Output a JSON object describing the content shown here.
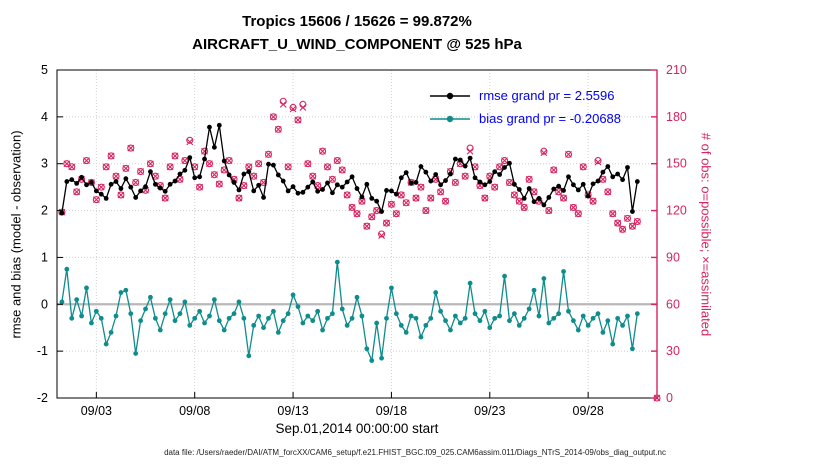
{
  "header": {
    "title_line1": "Tropics 15606 / 15626 = 99.872%",
    "title_line2": "AIRCRAFT_U_WIND_COMPONENT @ 525 hPa"
  },
  "footer": {
    "data_file": "data file: /Users/raeder/DAI/ATM_forcXX/CAM6_setup/f.e21.FHIST_BGC.f09_025.CAM6assim.011/Diags_NTrS_2014-09/obs_diag_output.nc"
  },
  "colors": {
    "obs_pink": "#D6245F",
    "bias_teal": "#0F8C8C",
    "rmse_black": "#000000",
    "legend_blue": "#0000EE",
    "zero_line_gray": "#B8B8B8",
    "grid_gray": "#CFCFCF"
  },
  "chart_data": {
    "type": "line",
    "title": "Tropics 15606 / 15626 = 99.872% — AIRCRAFT_U_WIND_COMPONENT @ 525 hPa",
    "x_axis": {
      "start_label": "Sep.01,2014 00:00:00 start",
      "range_days": [
        0,
        30.5
      ],
      "ticks": [
        {
          "day": 2,
          "label": "09/03"
        },
        {
          "day": 7,
          "label": "09/08"
        },
        {
          "day": 12,
          "label": "09/13"
        },
        {
          "day": 17,
          "label": "09/18"
        },
        {
          "day": 22,
          "label": "09/23"
        },
        {
          "day": 27,
          "label": "09/28"
        }
      ]
    },
    "left_axis": {
      "label": "rmse and bias (model - observation)",
      "range": [
        -2,
        5
      ],
      "ticks": [
        -2,
        -1,
        0,
        1,
        2,
        3,
        4,
        5
      ]
    },
    "right_axis": {
      "label": "# of obs: o=possible; ×=assimilated",
      "range": [
        0,
        210
      ],
      "ticks": [
        0,
        30,
        60,
        90,
        120,
        150,
        180,
        210
      ],
      "color": "#D6245F"
    },
    "grid": true,
    "zero_line": true,
    "legend_position": "top-right-inside",
    "x_start_day": 0.25,
    "x_step_days": 0.25,
    "series": [
      {
        "name": "rmse",
        "legend_label": "rmse grand pr = 2.5596",
        "grand_value": 2.5596,
        "axis": "left",
        "color": "#000000",
        "marker": "filled-dot-line",
        "values": [
          1.95,
          2.62,
          2.66,
          2.58,
          2.71,
          2.55,
          2.6,
          2.42,
          2.35,
          2.26,
          2.56,
          2.62,
          2.47,
          2.68,
          2.5,
          2.28,
          2.42,
          2.51,
          2.83,
          2.56,
          2.48,
          2.41,
          2.56,
          2.63,
          2.78,
          2.86,
          3.13,
          2.7,
          2.72,
          3.1,
          3.78,
          3.35,
          3.82,
          3.06,
          2.76,
          2.6,
          2.44,
          2.78,
          2.83,
          2.42,
          2.54,
          2.28,
          2.99,
          2.97,
          2.76,
          2.63,
          2.42,
          2.51,
          2.37,
          2.39,
          2.5,
          2.61,
          2.41,
          2.45,
          2.59,
          2.38,
          2.55,
          2.5,
          2.61,
          2.72,
          2.47,
          2.29,
          2.56,
          2.26,
          2.2,
          1.98,
          2.43,
          2.42,
          2.35,
          2.7,
          2.81,
          2.59,
          2.6,
          2.94,
          2.82,
          2.63,
          2.77,
          2.55,
          2.64,
          2.78,
          3.1,
          3.08,
          2.95,
          3.12,
          2.7,
          2.61,
          2.55,
          2.62,
          2.83,
          2.77,
          2.92,
          3.01,
          2.56,
          2.45,
          2.26,
          2.47,
          2.19,
          2.26,
          2.12,
          2.28,
          2.46,
          2.52,
          2.43,
          2.72,
          2.55,
          2.44,
          2.56,
          2.31,
          2.57,
          2.63,
          2.82,
          2.94,
          2.72,
          2.78,
          2.66,
          2.92,
          1.98,
          2.62
        ]
      },
      {
        "name": "bias",
        "legend_label": "bias grand pr = -0.20688",
        "grand_value": -0.20688,
        "axis": "left",
        "color": "#0F8C8C",
        "marker": "filled-dot-line",
        "values": [
          0.05,
          0.75,
          -0.3,
          0.1,
          -0.25,
          0.35,
          -0.4,
          -0.15,
          -0.3,
          -0.85,
          -0.6,
          -0.25,
          0.25,
          0.3,
          -0.2,
          -1.05,
          -0.35,
          -0.1,
          0.15,
          -0.3,
          -0.55,
          -0.2,
          0.1,
          -0.35,
          -0.2,
          0.05,
          -0.45,
          -0.3,
          -0.15,
          -0.4,
          -0.25,
          0.1,
          -0.35,
          -0.55,
          -0.3,
          -0.2,
          0.05,
          -0.3,
          -1.1,
          -0.45,
          -0.25,
          -0.5,
          -0.3,
          -0.15,
          -0.6,
          -0.35,
          -0.2,
          0.2,
          -0.05,
          -0.4,
          -0.25,
          -0.35,
          -0.15,
          -0.55,
          -0.3,
          -0.2,
          0.9,
          -0.1,
          -0.45,
          -0.3,
          0.15,
          -0.25,
          -0.95,
          -1.2,
          -0.4,
          -1.15,
          -0.3,
          0.35,
          -0.2,
          -0.45,
          -0.6,
          -0.25,
          -0.3,
          -0.7,
          -0.45,
          -0.3,
          0.25,
          -0.15,
          -0.35,
          -0.55,
          -0.25,
          -0.4,
          -0.3,
          0.45,
          -0.2,
          -0.35,
          -0.15,
          -0.5,
          -0.3,
          -0.25,
          0.6,
          -0.35,
          -0.2,
          -0.45,
          -0.3,
          -0.1,
          0.3,
          -0.25,
          0.55,
          -0.4,
          -0.3,
          -0.2,
          0.7,
          -0.15,
          -0.35,
          -0.55,
          -0.25,
          -0.45,
          -0.3,
          -0.2,
          -0.6,
          -0.35,
          -0.85,
          -0.3,
          -0.45,
          -0.25,
          -0.95,
          -0.2
        ]
      },
      {
        "name": "possible",
        "legend_label": "o=possible",
        "axis": "right",
        "color": "#D6245F",
        "marker": "o",
        "values": [
          119,
          150,
          148,
          132,
          140,
          152,
          138,
          127,
          135,
          148,
          155,
          142,
          130,
          147,
          160,
          138,
          145,
          133,
          150,
          142,
          136,
          128,
          148,
          155,
          140,
          152,
          165,
          148,
          135,
          158,
          150,
          143,
          137,
          146,
          152,
          140,
          128,
          136,
          148,
          142,
          150,
          138,
          156,
          180,
          172,
          190,
          148,
          186,
          178,
          188,
          150,
          142,
          136,
          158,
          148,
          140,
          152,
          146,
          130,
          122,
          118,
          126,
          110,
          116,
          120,
          105,
          112,
          124,
          118,
          130,
          125,
          138,
          128,
          135,
          120,
          128,
          140,
          132,
          126,
          145,
          138,
          150,
          142,
          160,
          148,
          136,
          128,
          142,
          135,
          148,
          152,
          138,
          130,
          126,
          122,
          140,
          132,
          126,
          158,
          120,
          146,
          132,
          128,
          156,
          122,
          118,
          148,
          130,
          126,
          152,
          140,
          132,
          118,
          112,
          108,
          115,
          110,
          113
        ]
      },
      {
        "name": "assimilated",
        "legend_label": "×=assimilated",
        "axis": "right",
        "color": "#D6245F",
        "marker": "x",
        "values": [
          119,
          150,
          148,
          132,
          140,
          152,
          138,
          127,
          135,
          148,
          155,
          142,
          130,
          147,
          160,
          138,
          145,
          133,
          150,
          142,
          136,
          128,
          148,
          155,
          140,
          152,
          164,
          148,
          135,
          158,
          150,
          143,
          137,
          146,
          152,
          140,
          128,
          136,
          148,
          142,
          150,
          138,
          156,
          180,
          172,
          188,
          148,
          185,
          178,
          186,
          150,
          142,
          136,
          158,
          148,
          140,
          152,
          146,
          130,
          122,
          118,
          126,
          110,
          116,
          120,
          104,
          112,
          124,
          118,
          130,
          125,
          138,
          128,
          135,
          120,
          128,
          140,
          132,
          126,
          145,
          138,
          150,
          142,
          158,
          148,
          136,
          128,
          142,
          135,
          148,
          152,
          138,
          130,
          126,
          122,
          140,
          132,
          126,
          157,
          120,
          146,
          132,
          128,
          156,
          122,
          118,
          148,
          130,
          126,
          151,
          140,
          132,
          118,
          112,
          108,
          115,
          110,
          113
        ]
      }
    ],
    "final_obs_point": {
      "day": 30.5,
      "possible": 0,
      "assimilated": 0
    }
  }
}
